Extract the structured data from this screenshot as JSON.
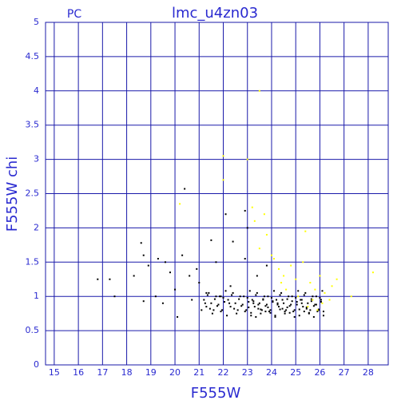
{
  "chart_data": {
    "type": "scatter",
    "title": "lmc_u4zn03",
    "subtitle": "PC",
    "x_label": "F555W",
    "y_label": "F555W chi",
    "xlim": [
      14.64,
      28.83
    ],
    "ylim": [
      0,
      5
    ],
    "xticks": [
      15,
      16,
      17,
      18,
      19,
      20,
      21,
      22,
      23,
      24,
      25,
      26,
      27,
      28
    ],
    "yticks": [
      0,
      0.5,
      1,
      1.5,
      2,
      2.5,
      3,
      3.5,
      4,
      4.5,
      5
    ],
    "grid": true,
    "grid_color": "#1a1aaa",
    "series": [
      {
        "color": "#000000",
        "x": [
          16.8,
          17.3,
          17.5,
          18.3,
          18.6,
          18.7,
          18.7,
          18.9,
          19.2,
          19.3,
          19.5,
          19.6,
          19.8,
          20.0,
          20.1,
          20.3,
          20.4,
          20.6,
          20.7,
          20.9,
          21.0,
          21.1,
          21.3,
          21.5,
          21.7,
          21.9,
          22.1,
          22.3,
          22.4,
          22.9,
          23.0,
          22.9,
          23.4,
          23.8,
          21.2,
          21.3,
          21.4,
          21.5,
          21.6,
          21.7,
          21.8,
          21.9,
          22.0,
          22.1,
          22.2,
          22.3,
          22.4,
          22.5,
          22.6,
          22.7,
          22.8,
          22.9,
          23.0,
          23.1,
          23.2,
          23.3,
          23.4,
          23.5,
          23.6,
          23.7,
          23.8,
          23.9,
          24.0,
          24.1,
          24.2,
          24.3,
          24.4,
          24.5,
          24.6,
          24.7,
          24.8,
          24.9,
          25.0,
          25.1,
          25.2,
          25.3,
          25.4,
          25.5,
          25.6,
          25.7,
          25.8,
          25.9,
          26.0,
          26.1,
          21.25,
          21.35,
          21.45,
          21.55,
          21.65,
          21.75,
          21.85,
          21.95,
          22.05,
          22.15,
          22.25,
          22.35,
          22.45,
          22.55,
          22.65,
          22.75,
          22.85,
          22.95,
          23.05,
          23.15,
          23.25,
          23.35,
          23.45,
          23.55,
          23.65,
          23.75,
          23.85,
          23.95,
          24.05,
          24.15,
          24.25,
          24.35,
          24.45,
          24.55,
          24.65,
          24.75,
          24.85,
          24.95,
          25.05,
          25.15,
          25.25,
          25.35,
          25.45,
          25.55,
          25.65,
          25.75,
          25.85,
          25.95,
          26.05,
          26.15,
          23.05,
          23.15,
          23.25,
          23.35,
          23.45,
          23.55,
          23.65,
          23.75,
          23.85,
          23.95,
          24.05,
          24.15,
          24.25,
          24.35,
          24.45,
          24.55,
          24.65,
          24.75,
          24.85,
          24.95,
          25.05,
          25.15,
          25.25,
          25.35,
          25.45,
          25.55,
          25.65,
          25.75,
          25.85,
          25.95,
          26.05,
          26.15
        ],
        "values": [
          1.25,
          1.25,
          1.0,
          1.3,
          1.78,
          1.6,
          0.93,
          1.45,
          1.0,
          1.55,
          0.9,
          1.5,
          1.35,
          1.1,
          0.7,
          1.6,
          2.57,
          1.3,
          0.95,
          1.4,
          1.2,
          0.8,
          1.05,
          1.82,
          1.5,
          1.0,
          2.2,
          1.15,
          1.8,
          2.25,
          2.0,
          1.55,
          1.3,
          1.45,
          0.95,
          0.85,
          1.05,
          0.9,
          0.8,
          1.0,
          0.88,
          0.78,
          0.98,
          1.08,
          0.95,
          0.85,
          1.05,
          0.9,
          0.8,
          1.0,
          0.88,
          0.78,
          0.98,
          1.08,
          0.95,
          0.85,
          1.05,
          0.9,
          0.8,
          1.0,
          0.88,
          0.78,
          0.98,
          1.08,
          0.95,
          0.85,
          1.05,
          0.9,
          0.8,
          1.0,
          0.88,
          0.78,
          0.98,
          1.08,
          0.95,
          0.85,
          1.05,
          0.9,
          0.8,
          1.0,
          0.88,
          0.78,
          0.98,
          1.08,
          0.9,
          1.02,
          0.82,
          0.75,
          0.96,
          0.86,
          1.0,
          0.8,
          0.92,
          0.72,
          0.9,
          1.02,
          0.82,
          0.75,
          0.96,
          0.86,
          1.0,
          0.8,
          0.92,
          0.72,
          0.9,
          1.02,
          0.82,
          0.75,
          0.96,
          0.86,
          1.0,
          0.8,
          0.92,
          0.72,
          0.9,
          1.02,
          0.82,
          0.75,
          0.96,
          0.86,
          1.0,
          0.8,
          0.92,
          0.72,
          0.9,
          1.02,
          0.82,
          0.75,
          0.96,
          0.86,
          1.0,
          0.8,
          0.92,
          0.72,
          0.84,
          0.76,
          0.93,
          0.7,
          0.88,
          0.81,
          0.95,
          0.78,
          0.84,
          0.76,
          0.93,
          0.7,
          0.88,
          0.81,
          0.95,
          0.78,
          0.84,
          0.76,
          0.93,
          0.7,
          0.88,
          0.81,
          0.95,
          0.78,
          0.84,
          0.76,
          0.93,
          0.7,
          0.88,
          0.81,
          0.95,
          0.78
        ]
      },
      {
        "color": "#ffff00",
        "x": [
          20.2,
          22.0,
          22.0,
          23.0,
          23.5,
          23.2,
          23.3,
          23.5,
          23.7,
          23.8,
          24.0,
          24.1,
          24.3,
          24.4,
          24.5,
          24.6,
          24.8,
          25.0,
          25.1,
          25.3,
          25.4,
          25.6,
          25.7,
          25.8,
          26.0,
          26.1,
          26.2,
          26.4,
          26.5,
          26.7,
          27.3,
          28.2,
          25.9,
          25.5
        ],
        "values": [
          2.35,
          2.7,
          3.05,
          3.0,
          4.0,
          2.3,
          2.1,
          1.7,
          2.2,
          1.9,
          1.6,
          1.55,
          1.4,
          1.2,
          1.3,
          1.1,
          1.45,
          1.25,
          1.0,
          1.5,
          1.95,
          1.2,
          0.95,
          1.1,
          1.3,
          0.9,
          1.05,
          0.95,
          1.15,
          1.25,
          1.0,
          1.35,
          0.8,
          0.85
        ]
      }
    ]
  }
}
